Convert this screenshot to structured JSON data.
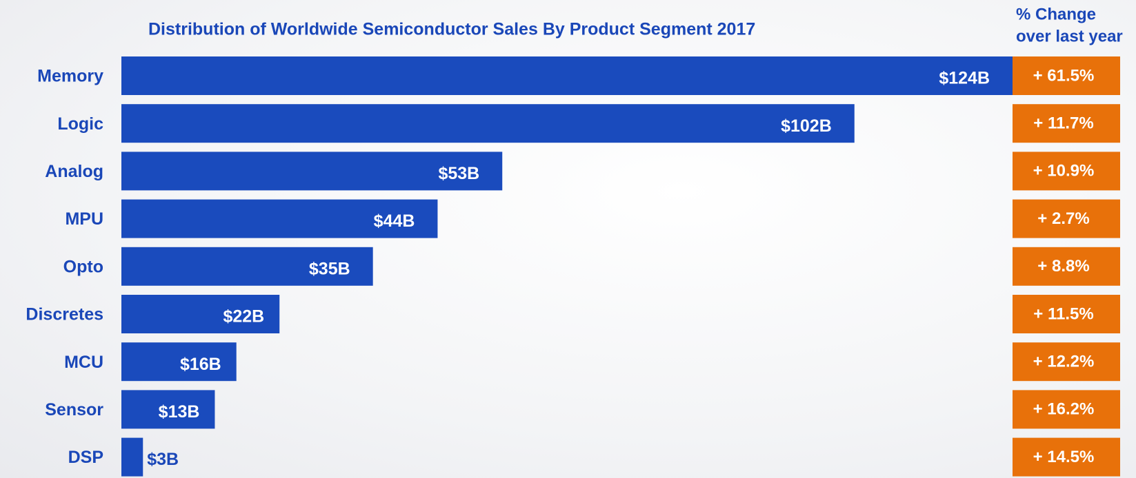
{
  "chart_data": {
    "type": "bar",
    "orientation": "horizontal",
    "title": "Distribution of Worldwide Semiconductor Sales By Product Segment 2017",
    "categories": [
      "Memory",
      "Logic",
      "Analog",
      "MPU",
      "Opto",
      "Discretes",
      "MCU",
      "Sensor",
      "DSP"
    ],
    "values": [
      124,
      102,
      53,
      44,
      35,
      22,
      16,
      13,
      3
    ],
    "value_labels": [
      "$124B",
      "$102B",
      "$53B",
      "$44B",
      "$35B",
      "$22B",
      "$16B",
      "$13B",
      "$3B"
    ],
    "color": "#1a4bbd",
    "change_title": [
      "% Change",
      "over last year"
    ],
    "change_values": [
      61.5,
      11.7,
      10.9,
      2.7,
      8.8,
      11.5,
      12.2,
      16.2,
      14.5
    ],
    "change_labels": [
      "+ 61.5%",
      "+ 11.7%",
      "+ 10.9%",
      "+ 2.7%",
      "+ 8.8%",
      "+ 11.5%",
      "+ 12.2%",
      "+ 16.2%",
      "+ 14.5%"
    ],
    "change_color": "#e8710a"
  }
}
